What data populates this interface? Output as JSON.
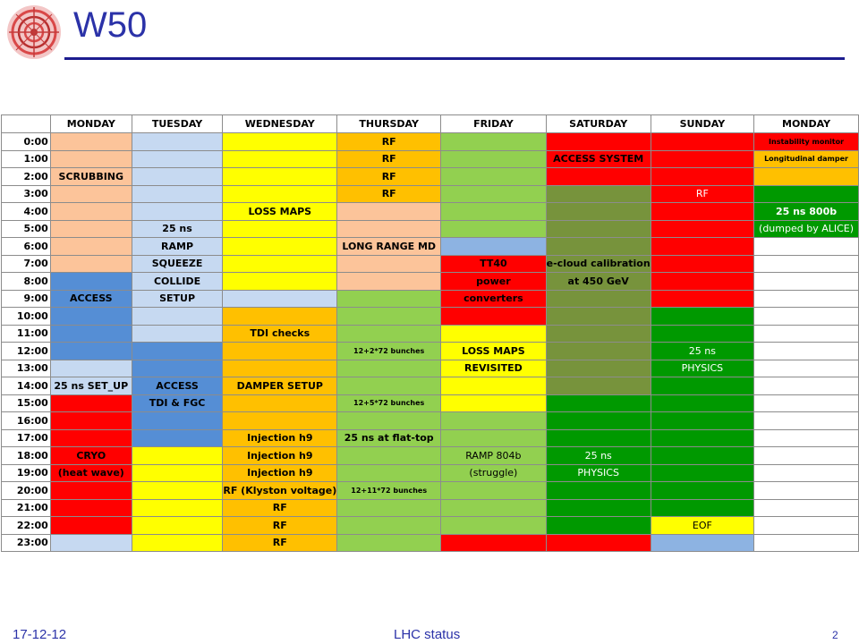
{
  "header": {
    "title": "W50"
  },
  "days": [
    "MONDAY",
    "TUESDAY",
    "WEDNESDAY",
    "THURSDAY",
    "FRIDAY",
    "SATURDAY",
    "SUNDAY",
    "MONDAY"
  ],
  "colors": {
    "peach": "#fcc49a",
    "light_blue": "#c6d9f1",
    "yellow": "#ffff00",
    "orange": "#ffc000",
    "light_green": "#92d050",
    "red": "#ff0000",
    "dark_green": "#009900",
    "olive_green": "#77933c",
    "blue": "#558ed5",
    "sky_blue": "#8db3e2",
    "title_blue": "#2b32a8"
  },
  "rows": [
    {
      "time": "0:00",
      "cells": [
        {
          "c": "pe",
          "t": ""
        },
        {
          "c": "lb",
          "t": ""
        },
        {
          "c": "y",
          "t": ""
        },
        {
          "c": "o",
          "t": "RF"
        },
        {
          "c": "lg",
          "t": ""
        },
        {
          "c": "r",
          "t": ""
        },
        {
          "c": "r",
          "t": ""
        },
        {
          "c": "r",
          "t": "Instability monitor",
          "s": "tiny"
        }
      ]
    },
    {
      "time": "1:00",
      "cells": [
        {
          "c": "pe",
          "t": ""
        },
        {
          "c": "lb",
          "t": ""
        },
        {
          "c": "y",
          "t": ""
        },
        {
          "c": "o",
          "t": "RF"
        },
        {
          "c": "lg",
          "t": ""
        },
        {
          "c": "r",
          "t": "ACCESS SYSTEM"
        },
        {
          "c": "r",
          "t": ""
        },
        {
          "c": "o",
          "t": "Longitudinal damper",
          "s": "tiny"
        }
      ]
    },
    {
      "time": "2:00",
      "cells": [
        {
          "c": "pe",
          "t": "SCRUBBING"
        },
        {
          "c": "lb",
          "t": ""
        },
        {
          "c": "y",
          "t": ""
        },
        {
          "c": "o",
          "t": "RF"
        },
        {
          "c": "lg",
          "t": ""
        },
        {
          "c": "r",
          "t": ""
        },
        {
          "c": "r",
          "t": ""
        },
        {
          "c": "o",
          "t": ""
        }
      ]
    },
    {
      "time": "3:00",
      "cells": [
        {
          "c": "pe",
          "t": ""
        },
        {
          "c": "lb",
          "t": ""
        },
        {
          "c": "y",
          "t": ""
        },
        {
          "c": "o",
          "t": "RF"
        },
        {
          "c": "lg",
          "t": ""
        },
        {
          "c": "og",
          "t": ""
        },
        {
          "c": "r",
          "t": "RF",
          "s": "wn"
        },
        {
          "c": "dg",
          "t": ""
        }
      ]
    },
    {
      "time": "4:00",
      "cells": [
        {
          "c": "pe",
          "t": ""
        },
        {
          "c": "lb",
          "t": ""
        },
        {
          "c": "y",
          "t": "LOSS MAPS"
        },
        {
          "c": "pe",
          "t": ""
        },
        {
          "c": "lg",
          "t": ""
        },
        {
          "c": "og",
          "t": ""
        },
        {
          "c": "r",
          "t": ""
        },
        {
          "c": "dg",
          "t": "25 ns 800b",
          "s": "w"
        }
      ]
    },
    {
      "time": "5:00",
      "cells": [
        {
          "c": "pe",
          "t": ""
        },
        {
          "c": "lb",
          "t": "25 ns"
        },
        {
          "c": "y",
          "t": ""
        },
        {
          "c": "pe",
          "t": ""
        },
        {
          "c": "lg",
          "t": ""
        },
        {
          "c": "og",
          "t": ""
        },
        {
          "c": "r",
          "t": ""
        },
        {
          "c": "dg",
          "t": "(dumped by ALICE)",
          "s": "wn"
        }
      ]
    },
    {
      "time": "6:00",
      "cells": [
        {
          "c": "pe",
          "t": ""
        },
        {
          "c": "lb",
          "t": "RAMP"
        },
        {
          "c": "y",
          "t": ""
        },
        {
          "c": "pe",
          "t": "LONG RANGE MD"
        },
        {
          "c": "sb",
          "t": ""
        },
        {
          "c": "og",
          "t": ""
        },
        {
          "c": "r",
          "t": ""
        },
        {
          "c": "w",
          "t": ""
        }
      ]
    },
    {
      "time": "7:00",
      "cells": [
        {
          "c": "pe",
          "t": ""
        },
        {
          "c": "lb",
          "t": "SQUEEZE"
        },
        {
          "c": "y",
          "t": ""
        },
        {
          "c": "pe",
          "t": ""
        },
        {
          "c": "r",
          "t": "TT40"
        },
        {
          "c": "og",
          "t": "e-cloud calibration"
        },
        {
          "c": "r",
          "t": ""
        },
        {
          "c": "w",
          "t": ""
        }
      ]
    },
    {
      "time": "8:00",
      "cells": [
        {
          "c": "bl",
          "t": ""
        },
        {
          "c": "lb",
          "t": "COLLIDE"
        },
        {
          "c": "y",
          "t": ""
        },
        {
          "c": "pe",
          "t": ""
        },
        {
          "c": "r",
          "t": "power"
        },
        {
          "c": "og",
          "t": "at 450 GeV"
        },
        {
          "c": "r",
          "t": ""
        },
        {
          "c": "w",
          "t": ""
        }
      ]
    },
    {
      "time": "9:00",
      "cells": [
        {
          "c": "bl",
          "t": "ACCESS"
        },
        {
          "c": "lb",
          "t": "SETUP"
        },
        {
          "c": "lb",
          "t": ""
        },
        {
          "c": "lg",
          "t": ""
        },
        {
          "c": "r",
          "t": "converters"
        },
        {
          "c": "og",
          "t": ""
        },
        {
          "c": "r",
          "t": ""
        },
        {
          "c": "w",
          "t": ""
        }
      ]
    },
    {
      "time": "10:00",
      "cells": [
        {
          "c": "bl",
          "t": ""
        },
        {
          "c": "lb",
          "t": ""
        },
        {
          "c": "o",
          "t": ""
        },
        {
          "c": "lg",
          "t": ""
        },
        {
          "c": "r",
          "t": ""
        },
        {
          "c": "og",
          "t": ""
        },
        {
          "c": "dg",
          "t": ""
        },
        {
          "c": "w",
          "t": ""
        }
      ]
    },
    {
      "time": "11:00",
      "cells": [
        {
          "c": "bl",
          "t": ""
        },
        {
          "c": "lb",
          "t": ""
        },
        {
          "c": "o",
          "t": "TDI checks"
        },
        {
          "c": "lg",
          "t": ""
        },
        {
          "c": "y",
          "t": ""
        },
        {
          "c": "og",
          "t": ""
        },
        {
          "c": "dg",
          "t": ""
        },
        {
          "c": "w",
          "t": ""
        }
      ]
    },
    {
      "time": "12:00",
      "cells": [
        {
          "c": "bl",
          "t": ""
        },
        {
          "c": "bl",
          "t": ""
        },
        {
          "c": "o",
          "t": ""
        },
        {
          "c": "lg",
          "t": "12+2*72 bunches",
          "s": "tiny"
        },
        {
          "c": "y",
          "t": "LOSS MAPS"
        },
        {
          "c": "og",
          "t": ""
        },
        {
          "c": "dg",
          "t": "25 ns",
          "s": "wn"
        },
        {
          "c": "w",
          "t": ""
        }
      ]
    },
    {
      "time": "13:00",
      "cells": [
        {
          "c": "lb",
          "t": ""
        },
        {
          "c": "bl",
          "t": ""
        },
        {
          "c": "o",
          "t": ""
        },
        {
          "c": "lg",
          "t": ""
        },
        {
          "c": "y",
          "t": "REVISITED"
        },
        {
          "c": "og",
          "t": ""
        },
        {
          "c": "dg",
          "t": "PHYSICS",
          "s": "wn"
        },
        {
          "c": "w",
          "t": ""
        }
      ]
    },
    {
      "time": "14:00",
      "cells": [
        {
          "c": "lb",
          "t": "25 ns SET_UP"
        },
        {
          "c": "bl",
          "t": "ACCESS"
        },
        {
          "c": "o",
          "t": "DAMPER SETUP"
        },
        {
          "c": "lg",
          "t": ""
        },
        {
          "c": "y",
          "t": ""
        },
        {
          "c": "og",
          "t": ""
        },
        {
          "c": "dg",
          "t": ""
        },
        {
          "c": "w",
          "t": ""
        }
      ]
    },
    {
      "time": "15:00",
      "cells": [
        {
          "c": "r",
          "t": ""
        },
        {
          "c": "bl",
          "t": "TDI & FGC"
        },
        {
          "c": "o",
          "t": ""
        },
        {
          "c": "lg",
          "t": "12+5*72 bunches",
          "s": "tiny"
        },
        {
          "c": "y",
          "t": ""
        },
        {
          "c": "dg",
          "t": ""
        },
        {
          "c": "dg",
          "t": ""
        },
        {
          "c": "w",
          "t": ""
        }
      ]
    },
    {
      "time": "16:00",
      "cells": [
        {
          "c": "r",
          "t": ""
        },
        {
          "c": "bl",
          "t": ""
        },
        {
          "c": "o",
          "t": ""
        },
        {
          "c": "lg",
          "t": ""
        },
        {
          "c": "lg",
          "t": ""
        },
        {
          "c": "dg",
          "t": ""
        },
        {
          "c": "dg",
          "t": ""
        },
        {
          "c": "w",
          "t": ""
        }
      ]
    },
    {
      "time": "17:00",
      "cells": [
        {
          "c": "r",
          "t": ""
        },
        {
          "c": "bl",
          "t": ""
        },
        {
          "c": "o",
          "t": "Injection h9"
        },
        {
          "c": "lg",
          "t": "25 ns at flat-top"
        },
        {
          "c": "lg",
          "t": ""
        },
        {
          "c": "dg",
          "t": ""
        },
        {
          "c": "dg",
          "t": ""
        },
        {
          "c": "w",
          "t": ""
        }
      ]
    },
    {
      "time": "18:00",
      "cells": [
        {
          "c": "r",
          "t": "CRYO"
        },
        {
          "c": "y",
          "t": ""
        },
        {
          "c": "o",
          "t": "Injection h9"
        },
        {
          "c": "lg",
          "t": ""
        },
        {
          "c": "lg",
          "t": "RAMP 804b",
          "s": "norm"
        },
        {
          "c": "dg",
          "t": "25 ns",
          "s": "wn"
        },
        {
          "c": "dg",
          "t": ""
        },
        {
          "c": "w",
          "t": ""
        }
      ]
    },
    {
      "time": "19:00",
      "cells": [
        {
          "c": "r",
          "t": "(heat wave)"
        },
        {
          "c": "y",
          "t": ""
        },
        {
          "c": "o",
          "t": "Injection h9"
        },
        {
          "c": "lg",
          "t": ""
        },
        {
          "c": "lg",
          "t": "(struggle)",
          "s": "norm"
        },
        {
          "c": "dg",
          "t": "PHYSICS",
          "s": "wn"
        },
        {
          "c": "dg",
          "t": ""
        },
        {
          "c": "w",
          "t": ""
        }
      ]
    },
    {
      "time": "20:00",
      "cells": [
        {
          "c": "r",
          "t": ""
        },
        {
          "c": "y",
          "t": ""
        },
        {
          "c": "o",
          "t": "RF (Klyston voltage)"
        },
        {
          "c": "lg",
          "t": "12+11*72 bunches",
          "s": "tiny"
        },
        {
          "c": "lg",
          "t": ""
        },
        {
          "c": "dg",
          "t": ""
        },
        {
          "c": "dg",
          "t": ""
        },
        {
          "c": "w",
          "t": ""
        }
      ]
    },
    {
      "time": "21:00",
      "cells": [
        {
          "c": "r",
          "t": ""
        },
        {
          "c": "y",
          "t": ""
        },
        {
          "c": "o",
          "t": "RF"
        },
        {
          "c": "lg",
          "t": ""
        },
        {
          "c": "lg",
          "t": ""
        },
        {
          "c": "dg",
          "t": ""
        },
        {
          "c": "dg",
          "t": ""
        },
        {
          "c": "w",
          "t": ""
        }
      ]
    },
    {
      "time": "22:00",
      "cells": [
        {
          "c": "r",
          "t": ""
        },
        {
          "c": "y",
          "t": ""
        },
        {
          "c": "o",
          "t": "RF"
        },
        {
          "c": "lg",
          "t": ""
        },
        {
          "c": "lg",
          "t": ""
        },
        {
          "c": "dg",
          "t": ""
        },
        {
          "c": "y",
          "t": "EOF",
          "s": "norm"
        },
        {
          "c": "w",
          "t": ""
        }
      ]
    },
    {
      "time": "23:00",
      "cells": [
        {
          "c": "lb",
          "t": ""
        },
        {
          "c": "y",
          "t": ""
        },
        {
          "c": "o",
          "t": "RF"
        },
        {
          "c": "lg",
          "t": ""
        },
        {
          "c": "r",
          "t": ""
        },
        {
          "c": "r",
          "t": ""
        },
        {
          "c": "sb",
          "t": ""
        },
        {
          "c": "w",
          "t": ""
        }
      ]
    }
  ],
  "footer": {
    "date": "17-12-12",
    "center": "LHC status",
    "page": "2"
  }
}
